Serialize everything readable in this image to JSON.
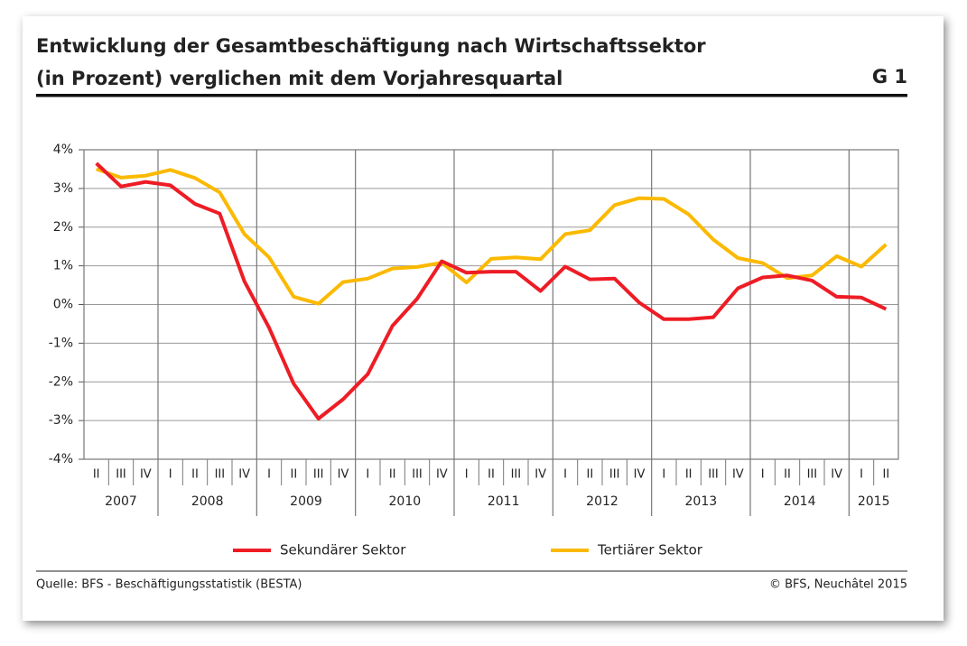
{
  "header": {
    "title_line1": "Entwicklung der Gesamtbeschäftigung nach Wirtschaftssektor",
    "title_line2": "(in Prozent) verglichen mit dem Vorjahresquartal",
    "figure_id": "G 1"
  },
  "chart_data": {
    "type": "line",
    "categories": [
      "II",
      "III",
      "IV",
      "I",
      "II",
      "III",
      "IV",
      "I",
      "II",
      "III",
      "IV",
      "I",
      "II",
      "III",
      "IV",
      "I",
      "II",
      "III",
      "IV",
      "I",
      "II",
      "III",
      "IV",
      "I",
      "II",
      "III",
      "IV",
      "I",
      "II",
      "III",
      "IV",
      "I",
      "II"
    ],
    "years": [
      "2007",
      "2008",
      "2009",
      "2010",
      "2011",
      "2012",
      "2013",
      "2014",
      "2015"
    ],
    "series": [
      {
        "name": "Sekundärer Sektor",
        "color": "#ee1c25",
        "values": [
          3.65,
          3.05,
          3.17,
          3.08,
          2.6,
          2.35,
          0.6,
          -0.6,
          -2.05,
          -2.95,
          -2.45,
          -1.8,
          -0.55,
          0.15,
          1.12,
          0.82,
          0.85,
          0.85,
          0.35,
          0.98,
          0.65,
          0.67,
          0.05,
          -0.38,
          -0.38,
          -0.33,
          0.42,
          0.7,
          0.75,
          0.62,
          0.2,
          0.18,
          -0.12
        ]
      },
      {
        "name": "Tertiärer Sektor",
        "color": "#fbb900",
        "values": [
          3.5,
          3.28,
          3.33,
          3.48,
          3.27,
          2.9,
          1.82,
          1.22,
          0.2,
          0.02,
          0.58,
          0.67,
          0.93,
          0.97,
          1.08,
          0.57,
          1.18,
          1.22,
          1.17,
          1.82,
          1.92,
          2.57,
          2.75,
          2.73,
          2.33,
          1.68,
          1.2,
          1.07,
          0.68,
          0.75,
          1.25,
          0.98,
          1.55
        ]
      }
    ],
    "ylim": [
      -4,
      4
    ],
    "yticks": [
      {
        "value": 4,
        "label": "4%"
      },
      {
        "value": 3,
        "label": "3%"
      },
      {
        "value": 2,
        "label": "2%"
      },
      {
        "value": 1,
        "label": "1%"
      },
      {
        "value": 0,
        "label": "0%"
      },
      {
        "value": -1,
        "label": "-1%"
      },
      {
        "value": -2,
        "label": "-2%"
      },
      {
        "value": -3,
        "label": "-3%"
      },
      {
        "value": -4,
        "label": "-4%"
      }
    ],
    "grid": true
  },
  "footer": {
    "source": "Quelle: BFS - Beschäftigungsstatistik (BESTA)",
    "copyright": "© BFS, Neuchâtel 2015"
  }
}
